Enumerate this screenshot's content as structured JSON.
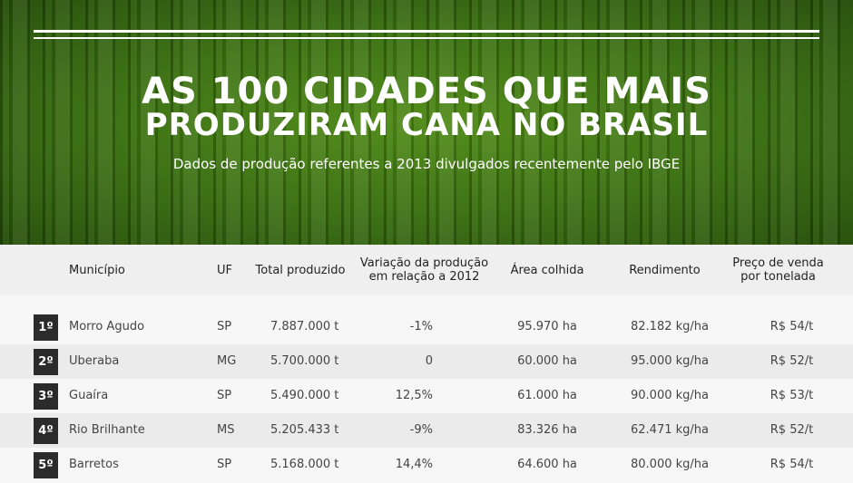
{
  "header": {
    "title_lines": [
      "AS 100 CIDADES QUE MAIS",
      "PRODUZIRAM CANA NO BRASIL"
    ],
    "subtitle": "Dados de produção referentes a 2013 divulgados recentemente pelo IBGE"
  },
  "table": {
    "columns": [
      [
        "Município"
      ],
      [
        "UF"
      ],
      [
        "Total produzido"
      ],
      [
        "Variação da produção",
        "em relação a 2012"
      ],
      [
        "Área colhida"
      ],
      [
        "Rendimento"
      ],
      [
        "Preço de venda",
        "por tonelada"
      ]
    ],
    "rows": [
      [
        "1º",
        "Morro Agudo",
        "SP",
        "7.887.000 t",
        "-1%",
        "95.970 ha",
        "82.182 kg/ha",
        "R$ 54/t"
      ],
      [
        "2º",
        "Uberaba",
        "MG",
        "5.700.000 t",
        "0",
        "60.000 ha",
        "95.000 kg/ha",
        "R$ 52/t"
      ],
      [
        "3º",
        "Guaíra",
        "SP",
        "5.490.000 t",
        "12,5%",
        "61.000 ha",
        "90.000 kg/ha",
        "R$ 53/t"
      ],
      [
        "4º",
        "Rio Brilhante",
        "MS",
        "5.205.433 t",
        "-9%",
        "83.326 ha",
        "62.471 kg/ha",
        "R$ 52/t"
      ],
      [
        "5º",
        "Barretos",
        "SP",
        "5.168.000 t",
        "14,4%",
        "64.600 ha",
        "80.000 kg/ha",
        "R$ 54/t"
      ]
    ]
  }
}
